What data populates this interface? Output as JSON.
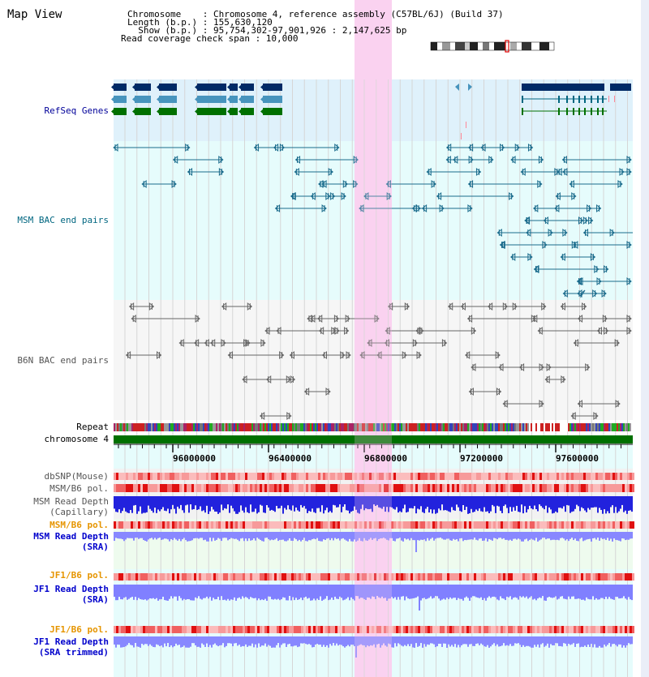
{
  "header": {
    "title": "Map View",
    "info_lines": [
      "Chromosome    : Chromosome 4, reference assembly (C57BL/6J) (Build 37)",
      "Length (b.p.) : 155,630,120",
      "  Show (b.p.) : 95,754,302-97,901,926 : 2,147,625 bp",
      "Read coverage check span : 10,000"
    ]
  },
  "tracks": {
    "refseq": {
      "label": "RefSeq Genes",
      "color": "#000099"
    },
    "msm_bac": {
      "label": "MSM BAC end pairs",
      "color": "#006680"
    },
    "b6n_bac": {
      "label": "B6N BAC end pairs",
      "color": "#555555"
    },
    "repeat": {
      "label": "Repeat"
    },
    "chromosome": {
      "label": "chromosome 4"
    },
    "dbsnp": {
      "label": "dbSNP(Mouse)"
    },
    "msm_b6_pol": {
      "label": "MSM/B6 pol."
    },
    "msm_read_depth_cap": {
      "label_line1": "MSM Read Depth",
      "label_line2": "(Capillary)"
    },
    "msm_b6_pol_sra": {
      "label": "MSM/B6 pol."
    },
    "msm_read_depth_sra": {
      "label_line1": "MSM Read Depth",
      "label_line2": "(SRA)"
    },
    "jf1_b6_pol_sra": {
      "label": "JF1/B6 pol."
    },
    "jf1_read_depth_sra": {
      "label_line1": "JF1 Read Depth",
      "label_line2": "(SRA)"
    },
    "jf1_b6_pol_trim": {
      "label": "JF1/B6 pol."
    },
    "jf1_read_depth_trim": {
      "label_line1": "JF1 Read Depth",
      "label_line2": "(SRA trimmed)"
    }
  },
  "axis": {
    "ticks": [
      "96000000",
      "96400000",
      "96800000",
      "97200000",
      "97600000"
    ]
  },
  "colors": {
    "highlight": "#fad2f0",
    "label_orange": "#e69500",
    "label_blue": "#0000cc"
  }
}
